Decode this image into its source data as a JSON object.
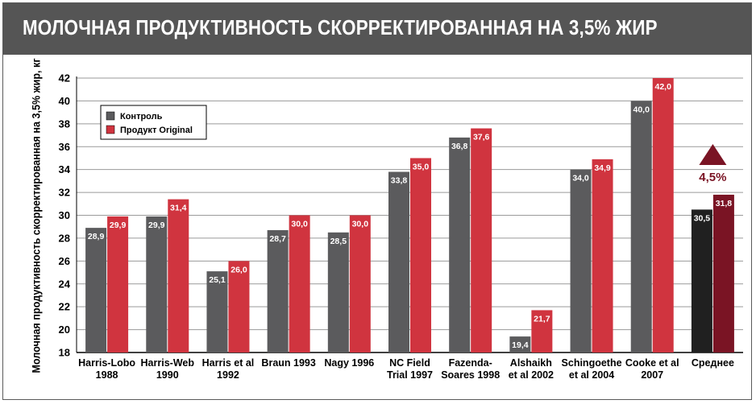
{
  "header": {
    "title": "МОЛОЧНАЯ ПРОДУКТИВНОСТЬ СКОРРЕКТИРОВАННАЯ НА 3,5% ЖИР"
  },
  "annotation": {
    "change_label": "4,5%",
    "marker": "up-triangle-icon"
  },
  "colors": {
    "control": "#5b5b5d",
    "product": "#d0343f",
    "avg_control": "#202020",
    "avg_product": "#7a1424",
    "triangle": "#7a1424"
  },
  "chart_data": {
    "type": "bar",
    "title": "МОЛОЧНАЯ ПРОДУКТИВНОСТЬ СКОРРЕКТИРОВАННАЯ НА 3,5% ЖИР",
    "ylabel": "Молочная продуктивность скорректированная на 3,5% жир, кг",
    "xlabel": "",
    "ylim": [
      18,
      42
    ],
    "yticks": [
      18,
      20,
      22,
      24,
      26,
      28,
      30,
      32,
      34,
      36,
      38,
      40,
      42
    ],
    "grid": true,
    "legend_position": "top-left",
    "categories": [
      [
        "Harris-Lobo",
        "1988"
      ],
      [
        "Harris-Web",
        "1990"
      ],
      [
        "Harris et al",
        "1992"
      ],
      [
        "Braun 1993"
      ],
      [
        "Nagy 1996"
      ],
      [
        "NC Field",
        "Trial 1997"
      ],
      [
        "Fazenda-",
        "Soares 1998"
      ],
      [
        "Alshaikh",
        "et al 2002"
      ],
      [
        "Schingoethe",
        "et al 2004"
      ],
      [
        "Cooke et al",
        "2007"
      ],
      [
        "Среднее"
      ]
    ],
    "series": [
      {
        "name": "Контроль",
        "values": [
          28.9,
          29.9,
          25.1,
          28.7,
          28.5,
          33.8,
          36.8,
          19.4,
          34.0,
          40.0,
          30.5
        ],
        "labels": [
          "28,9",
          "29,9",
          "25,1",
          "28,7",
          "28,5",
          "33,8",
          "36,8",
          "19,4",
          "34,0",
          "40,0",
          "30,5"
        ]
      },
      {
        "name": "Продукт Original",
        "values": [
          29.9,
          31.4,
          26.0,
          30.0,
          30.0,
          35.0,
          37.6,
          21.7,
          34.9,
          42.0,
          31.8
        ],
        "labels": [
          "29,9",
          "31,4",
          "26,0",
          "30,0",
          "30,0",
          "35,0",
          "37,6",
          "21,7",
          "34,9",
          "42,0",
          "31,8"
        ]
      }
    ]
  }
}
